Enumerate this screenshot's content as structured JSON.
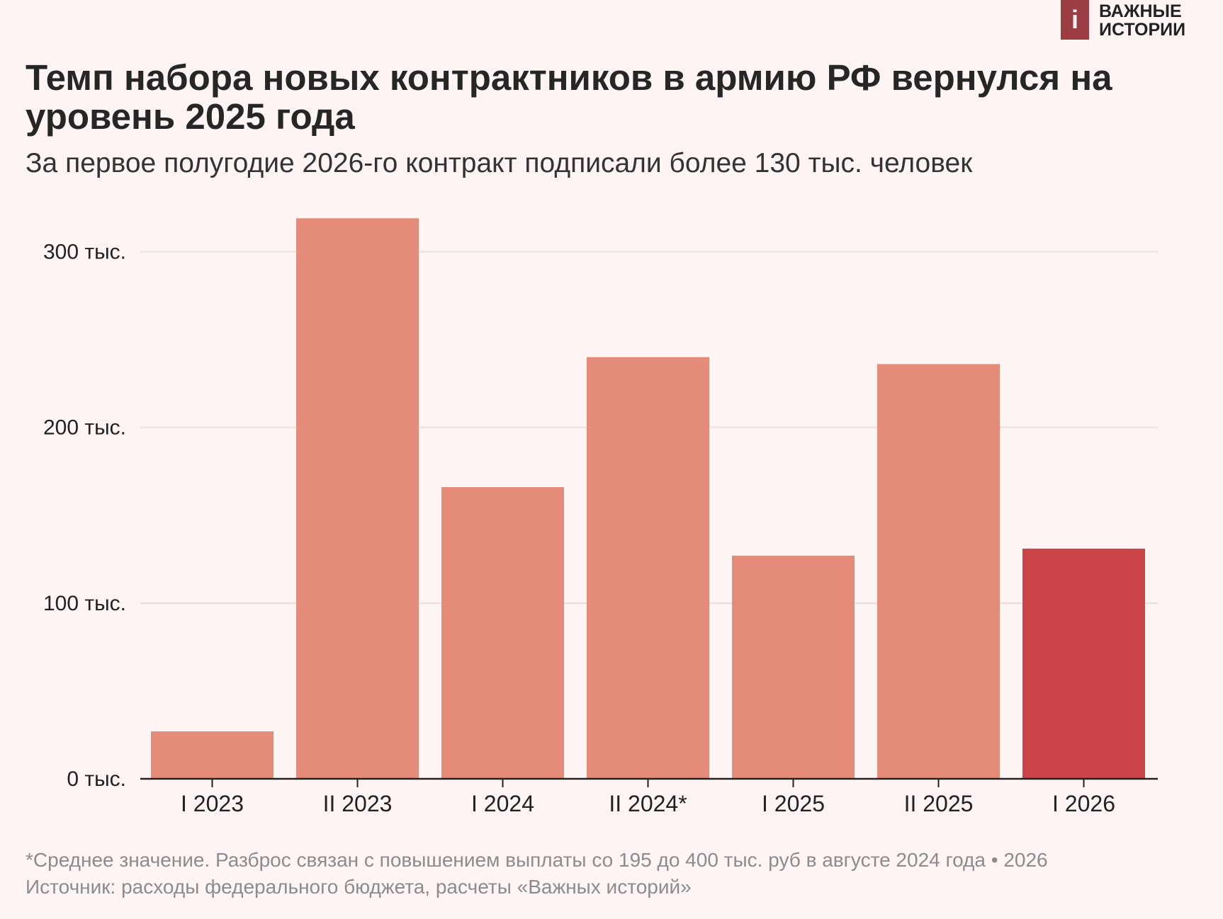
{
  "brand": {
    "logo_glyph": "i",
    "line1": "ВАЖНЫЕ",
    "line2": "ИСТОРИИ",
    "color": "#9c3d44"
  },
  "header": {
    "title": "Темп набора новых контрактников в армию РФ вернулся на уровень 2025 года",
    "subtitle": "За первое полугодие 2026-го контракт подписали более 130 тыс. человек"
  },
  "chart_data": {
    "type": "bar",
    "categories": [
      "I 2023",
      "II 2023",
      "I 2024",
      "II 2024*",
      "I 2025",
      "II 2025",
      "I 2026"
    ],
    "values": [
      27000,
      319000,
      166000,
      240000,
      127000,
      236000,
      131000
    ],
    "highlight_index": 6,
    "colors": {
      "bar": "#e58b7a",
      "highlight": "#cb4448",
      "grid": "#e5e1e0",
      "axis": "#222222"
    },
    "ylim": [
      0,
      330000
    ],
    "y_ticks": [
      0,
      100000,
      200000,
      300000
    ],
    "y_tick_labels": [
      "0 тыс.",
      "100 тыс.",
      "200 тыс.",
      "300 тыс."
    ],
    "grid": true,
    "xlabel": "",
    "ylabel": ""
  },
  "footer": {
    "note": "*Среднее значение. Разброс связан с повышением выплаты со 195 до 400 тыс. руб в августе 2024 года • 2026",
    "source": "Источник: расходы федерального бюджета, расчеты «Важных историй»"
  }
}
